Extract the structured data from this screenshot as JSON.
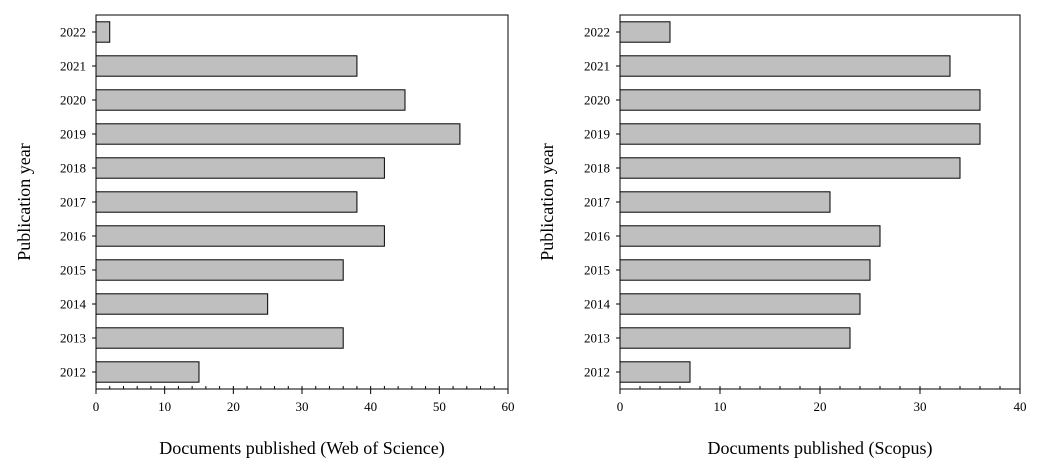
{
  "chart_data": [
    {
      "type": "bar",
      "orientation": "horizontal",
      "title": "",
      "xlabel": "Documents published (Web of Science)",
      "ylabel": "Publication year",
      "categories": [
        "2012",
        "2013",
        "2014",
        "2015",
        "2016",
        "2017",
        "2018",
        "2019",
        "2020",
        "2021",
        "2022"
      ],
      "values": [
        15,
        36,
        25,
        36,
        42,
        38,
        42,
        53,
        45,
        38,
        2
      ],
      "xlim": [
        0,
        60
      ],
      "xticks": [
        "0",
        "10",
        "20",
        "30",
        "40",
        "50",
        "60"
      ],
      "minor_tick_step": 2,
      "bar_color": "#bfbfbf",
      "grid": false,
      "legend": "none"
    },
    {
      "type": "bar",
      "orientation": "horizontal",
      "title": "",
      "xlabel": "Documents published (Scopus)",
      "ylabel": "Publication year",
      "categories": [
        "2012",
        "2013",
        "2014",
        "2015",
        "2016",
        "2017",
        "2018",
        "2019",
        "2020",
        "2021",
        "2022"
      ],
      "values": [
        7,
        23,
        24,
        25,
        26,
        21,
        34,
        36,
        36,
        33,
        5
      ],
      "xlim": [
        0,
        40
      ],
      "xticks": [
        "0",
        "10",
        "20",
        "30",
        "40"
      ],
      "minor_tick_step": 2,
      "bar_color": "#bfbfbf",
      "grid": false,
      "legend": "none"
    }
  ]
}
